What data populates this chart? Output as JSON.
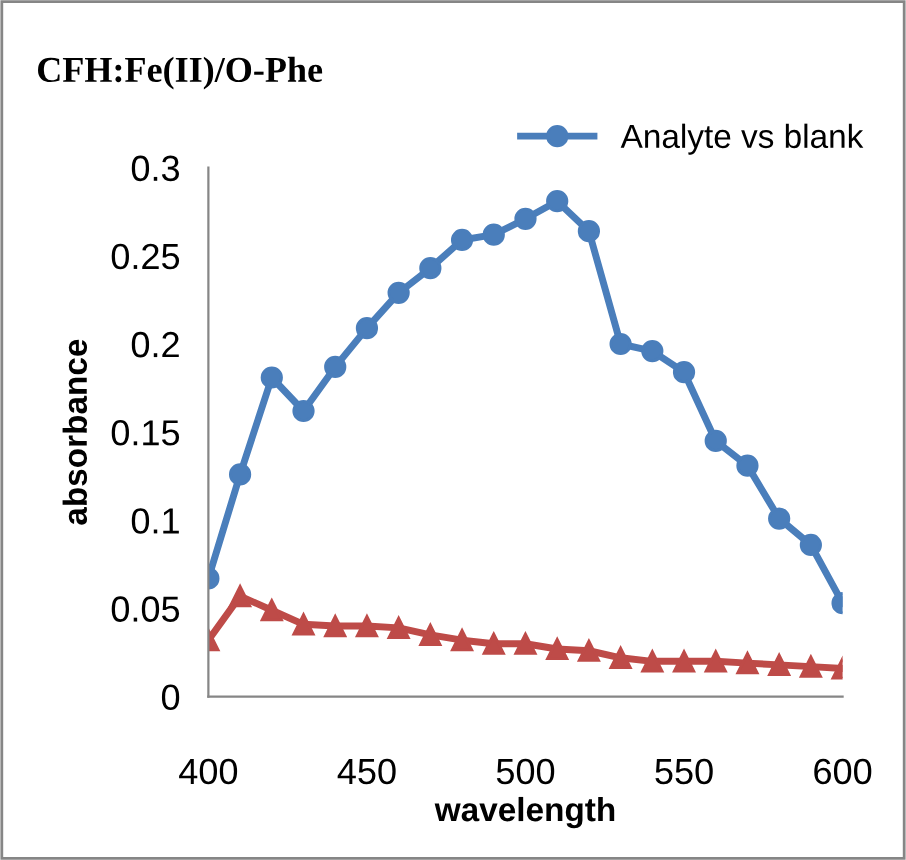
{
  "chart_data": {
    "type": "line",
    "title": "CFH:Fe(II)/O-Phe",
    "xlabel": "wavelength",
    "ylabel": "absorbance",
    "x": [
      400,
      410,
      420,
      430,
      440,
      450,
      460,
      470,
      480,
      490,
      500,
      510,
      520,
      530,
      540,
      550,
      560,
      570,
      580,
      590,
      600
    ],
    "series": [
      {
        "name": "Analyte vs blank",
        "color": "#4a7ebb",
        "marker": "circle",
        "values": [
          0.067,
          0.126,
          0.181,
          0.162,
          0.187,
          0.209,
          0.229,
          0.243,
          0.259,
          0.262,
          0.271,
          0.281,
          0.264,
          0.2,
          0.196,
          0.184,
          0.145,
          0.131,
          0.101,
          0.086,
          0.053
        ]
      },
      {
        "color": "#be4b48",
        "marker": "triangle",
        "values": [
          0.032,
          0.057,
          0.049,
          0.041,
          0.04,
          0.04,
          0.039,
          0.035,
          0.032,
          0.03,
          0.03,
          0.027,
          0.026,
          0.022,
          0.02,
          0.02,
          0.02,
          0.019,
          0.018,
          0.017,
          0.016
        ]
      }
    ],
    "xlim": [
      400,
      600
    ],
    "xticks": [
      400,
      450,
      500,
      550,
      600
    ],
    "ylim": [
      0,
      0.3
    ],
    "yticks": [
      0,
      0.05,
      0.1,
      0.15,
      0.2,
      0.25,
      0.3
    ],
    "grid": false,
    "legend": "top right",
    "line_style": "solid"
  }
}
